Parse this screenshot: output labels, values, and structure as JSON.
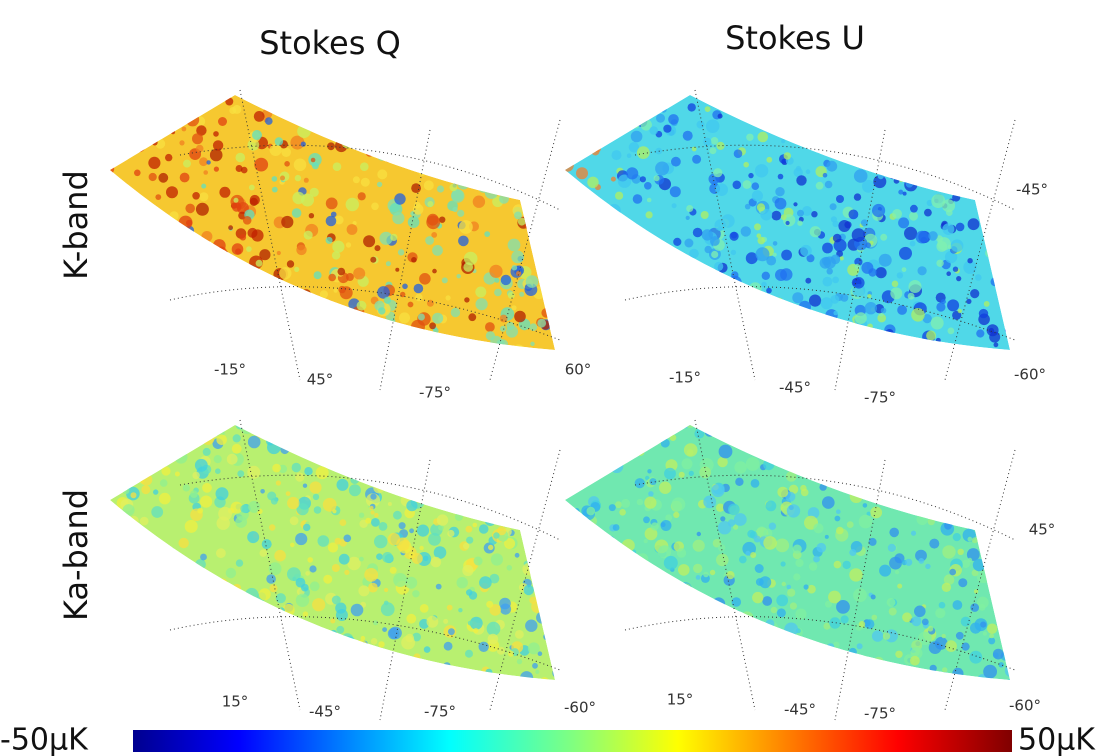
{
  "column_titles": [
    "Stokes Q",
    "Stokes U"
  ],
  "row_labels": [
    "K-band",
    "Ka-band"
  ],
  "panels": [
    {
      "labels": [
        "-15°",
        "45°",
        "-75°",
        "60°"
      ]
    },
    {
      "labels": [
        "-15°",
        "-45°",
        "-75°",
        "-60°",
        "-45°"
      ]
    },
    {
      "labels": [
        "15°",
        "-45°",
        "-75°",
        "-60°"
      ]
    },
    {
      "labels": [
        "15°",
        "-45°",
        "-75°",
        "-60°",
        "45°"
      ]
    }
  ],
  "colorbar": {
    "min_label": "-50µK",
    "max_label": "50µK"
  }
}
